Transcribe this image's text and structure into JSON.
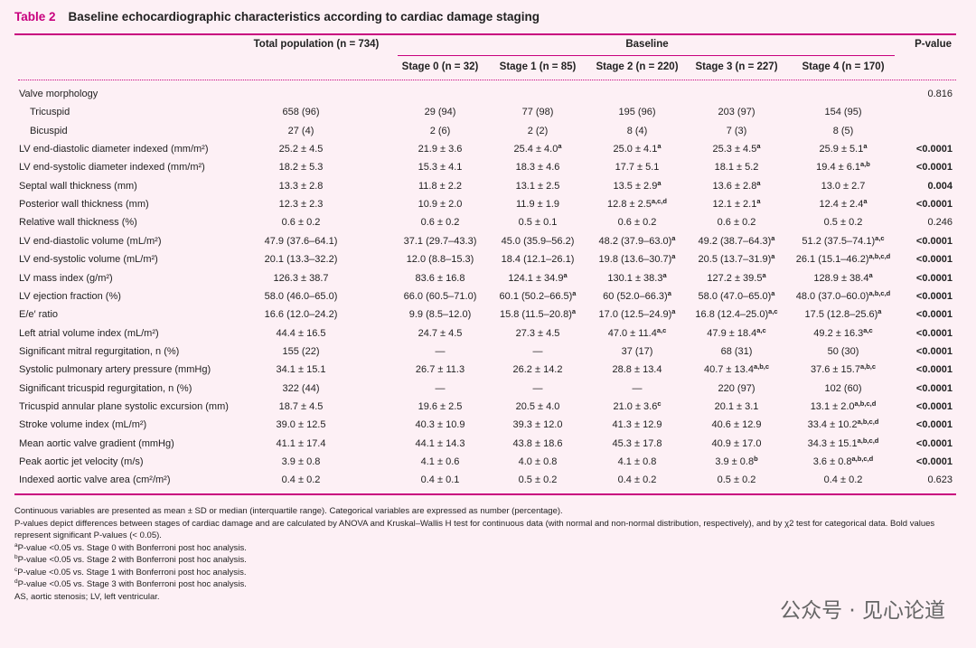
{
  "table_label": "Table 2",
  "title": "Baseline echocardiographic characteristics according to cardiac damage staging",
  "header": {
    "total": "Total population (n = 734)",
    "baseline": "Baseline",
    "p": "P-value",
    "stages": [
      "Stage 0 (n = 32)",
      "Stage 1 (n = 85)",
      "Stage 2 (n = 220)",
      "Stage 3 (n = 227)",
      "Stage 4 (n = 170)"
    ]
  },
  "rows": [
    {
      "label": "Valve morphology",
      "cells": [
        null,
        null,
        null,
        null,
        null,
        null
      ],
      "p": "0.816"
    },
    {
      "label": "Tricuspid",
      "indent": true,
      "cells": [
        "658 (96)",
        "29 (94)",
        "77 (98)",
        "195 (96)",
        "203 (97)",
        "154 (95)"
      ]
    },
    {
      "label": "Bicuspid",
      "indent": true,
      "cells": [
        "27 (4)",
        "2 (6)",
        "2 (2)",
        "8 (4)",
        "7 (3)",
        "8 (5)"
      ]
    },
    {
      "label": "LV end-diastolic diameter indexed (mm/m²)",
      "cells": [
        "25.2 ± 4.5",
        "21.9 ± 3.6",
        {
          "text": "25.4 ± 4.0",
          "sup": "a"
        },
        {
          "text": "25.0 ± 4.1",
          "sup": "a"
        },
        {
          "text": "25.3 ± 4.5",
          "sup": "a"
        },
        {
          "text": "25.9 ± 5.1",
          "sup": "a"
        }
      ],
      "p": "<0.0001",
      "p_bold": true
    },
    {
      "label": "LV end-systolic diameter indexed (mm/m²)",
      "cells": [
        "18.2 ± 5.3",
        "15.3 ± 4.1",
        "18.3 ± 4.6",
        "17.7 ± 5.1",
        "18.1 ± 5.2",
        {
          "text": "19.4 ± 6.1",
          "sup": "a,b"
        }
      ],
      "p": "<0.0001",
      "p_bold": true
    },
    {
      "label": "Septal wall thickness (mm)",
      "cells": [
        "13.3 ± 2.8",
        "11.8 ± 2.2",
        "13.1 ± 2.5",
        {
          "text": "13.5 ± 2.9",
          "sup": "a"
        },
        {
          "text": "13.6 ± 2.8",
          "sup": "a"
        },
        "13.0 ± 2.7"
      ],
      "p": "0.004",
      "p_bold": true
    },
    {
      "label": "Posterior wall thickness (mm)",
      "cells": [
        "12.3 ± 2.3",
        "10.9 ± 2.0",
        "11.9 ± 1.9",
        {
          "text": "12.8 ± 2.5",
          "sup": "a,c,d"
        },
        {
          "text": "12.1 ± 2.1",
          "sup": "a"
        },
        {
          "text": "12.4 ± 2.4",
          "sup": "a"
        }
      ],
      "p": "<0.0001",
      "p_bold": true
    },
    {
      "label": "Relative wall thickness (%)",
      "cells": [
        "0.6 ± 0.2",
        "0.6 ± 0.2",
        "0.5 ± 0.1",
        "0.6 ± 0.2",
        "0.6 ± 0.2",
        "0.5 ± 0.2"
      ],
      "p": "0.246"
    },
    {
      "label": "LV end-diastolic volume (mL/m²)",
      "cells": [
        "47.9 (37.6–64.1)",
        "37.1 (29.7–43.3)",
        "45.0 (35.9–56.2)",
        {
          "text": "48.2 (37.9–63.0)",
          "sup": "a"
        },
        {
          "text": "49.2 (38.7–64.3)",
          "sup": "a"
        },
        {
          "text": "51.2 (37.5–74.1)",
          "sup": "a,c"
        }
      ],
      "p": "<0.0001",
      "p_bold": true
    },
    {
      "label": "LV end-systolic volume (mL/m²)",
      "cells": [
        "20.1 (13.3–32.2)",
        "12.0 (8.8–15.3)",
        "18.4 (12.1–26.1)",
        {
          "text": "19.8 (13.6–30.7)",
          "sup": "a"
        },
        {
          "text": "20.5 (13.7–31.9)",
          "sup": "a"
        },
        {
          "text": "26.1 (15.1–46.2)",
          "sup": "a,b,c,d"
        }
      ],
      "p": "<0.0001",
      "p_bold": true
    },
    {
      "label": "LV mass index (g/m²)",
      "cells": [
        "126.3 ± 38.7",
        "83.6 ± 16.8",
        {
          "text": "124.1 ± 34.9",
          "sup": "a"
        },
        {
          "text": "130.1 ± 38.3",
          "sup": "a"
        },
        {
          "text": "127.2 ± 39.5",
          "sup": "a"
        },
        {
          "text": "128.9 ± 38.4",
          "sup": "a"
        }
      ],
      "p": "<0.0001",
      "p_bold": true
    },
    {
      "label": "LV ejection fraction (%)",
      "cells": [
        "58.0 (46.0–65.0)",
        "66.0 (60.5–71.0)",
        {
          "text": "60.1 (50.2–66.5)",
          "sup": "a"
        },
        {
          "text": "60 (52.0–66.3)",
          "sup": "a"
        },
        {
          "text": "58.0 (47.0–65.0)",
          "sup": "a"
        },
        {
          "text": "48.0 (37.0–60.0)",
          "sup": "a,b,c,d"
        }
      ],
      "p": "<0.0001",
      "p_bold": true
    },
    {
      "label": "E/e′ ratio",
      "cells": [
        "16.6 (12.0–24.2)",
        "9.9 (8.5–12.0)",
        {
          "text": "15.8 (11.5–20.8)",
          "sup": "a"
        },
        {
          "text": "17.0 (12.5–24.9)",
          "sup": "a"
        },
        {
          "text": "16.8 (12.4–25.0)",
          "sup": "a,c"
        },
        {
          "text": "17.5 (12.8–25.6)",
          "sup": "a"
        }
      ],
      "p": "<0.0001",
      "p_bold": true
    },
    {
      "label": "Left atrial volume index (mL/m²)",
      "cells": [
        "44.4 ± 16.5",
        "24.7 ± 4.5",
        "27.3 ± 4.5",
        {
          "text": "47.0 ± 11.4",
          "sup": "a,c"
        },
        {
          "text": "47.9 ± 18.4",
          "sup": "a,c"
        },
        {
          "text": "49.2 ± 16.3",
          "sup": "a,c"
        }
      ],
      "p": "<0.0001",
      "p_bold": true
    },
    {
      "label": "Significant mitral regurgitation, n (%)",
      "cells": [
        "155 (22)",
        "—",
        "—",
        "37 (17)",
        "68 (31)",
        "50 (30)"
      ],
      "p": "<0.0001",
      "p_bold": true
    },
    {
      "label": "Systolic pulmonary artery pressure (mmHg)",
      "cells": [
        "34.1 ± 15.1",
        "26.7 ± 11.3",
        "26.2 ± 14.2",
        "28.8 ± 13.4",
        {
          "text": "40.7 ± 13.4",
          "sup": "a,b,c"
        },
        {
          "text": "37.6 ± 15.7",
          "sup": "a,b,c"
        }
      ],
      "p": "<0.0001",
      "p_bold": true
    },
    {
      "label": "Significant tricuspid regurgitation, n (%)",
      "cells": [
        "322 (44)",
        "—",
        "—",
        "—",
        "220 (97)",
        "102 (60)"
      ],
      "p": "<0.0001",
      "p_bold": true
    },
    {
      "label": "Tricuspid annular plane systolic excursion (mm)",
      "cells": [
        "18.7 ± 4.5",
        "19.6 ± 2.5",
        "20.5 ± 4.0",
        {
          "text": "21.0 ± 3.6",
          "sup": "c"
        },
        "20.1 ± 3.1",
        {
          "text": "13.1 ± 2.0",
          "sup": "a,b,c,d"
        }
      ],
      "p": "<0.0001",
      "p_bold": true
    },
    {
      "label": "Stroke volume index (mL/m²)",
      "cells": [
        "39.0 ± 12.5",
        "40.3 ± 10.9",
        "39.3 ± 12.0",
        "41.3 ± 12.9",
        "40.6 ± 12.9",
        {
          "text": "33.4 ± 10.2",
          "sup": "a,b,c,d"
        }
      ],
      "p": "<0.0001",
      "p_bold": true
    },
    {
      "label": "Mean aortic valve gradient (mmHg)",
      "cells": [
        "41.1 ± 17.4",
        "44.1 ± 14.3",
        "43.8 ± 18.6",
        "45.3 ± 17.8",
        "40.9 ± 17.0",
        {
          "text": "34.3 ± 15.1",
          "sup": "a,b,c,d"
        }
      ],
      "p": "<0.0001",
      "p_bold": true
    },
    {
      "label": "Peak aortic jet velocity (m/s)",
      "cells": [
        "3.9 ± 0.8",
        "4.1 ± 0.6",
        "4.0 ± 0.8",
        "4.1 ± 0.8",
        {
          "text": "3.9 ± 0.8",
          "sup": "b"
        },
        {
          "text": "3.6 ± 0.8",
          "sup": "a,b,c,d"
        }
      ],
      "p": "<0.0001",
      "p_bold": true
    },
    {
      "label": "Indexed aortic valve area (cm²/m²)",
      "cells": [
        "0.4 ± 0.2",
        "0.4 ± 0.1",
        "0.5 ± 0.2",
        "0.4 ± 0.2",
        "0.5 ± 0.2",
        "0.4 ± 0.2"
      ],
      "p": "0.623"
    }
  ],
  "notes": [
    {
      "text": "Continuous variables are presented as mean ± SD or median (interquartile range). Categorical variables are expressed as number (percentage)."
    },
    {
      "text": "P-values depict differences between stages of cardiac damage and are calculated by ANOVA and Kruskal–Wallis H test for continuous data (with normal and non-normal distribution, respectively), and by χ2 test for categorical data. Bold values represent significant P-values (< 0.05)."
    },
    {
      "mark": "a",
      "text": "P-value <0.05 vs. Stage 0 with Bonferroni post hoc analysis."
    },
    {
      "mark": "b",
      "text": "P-value <0.05 vs. Stage 2 with Bonferroni post hoc analysis."
    },
    {
      "mark": "c",
      "text": "P-value <0.05 vs. Stage 1 with Bonferroni post hoc analysis."
    },
    {
      "mark": "d",
      "text": "P-value <0.05 vs. Stage 3 with Bonferroni post hoc analysis."
    },
    {
      "text": "AS, aortic stenosis; LV, left ventricular."
    }
  ],
  "watermark": "公众号 · 见心论道"
}
